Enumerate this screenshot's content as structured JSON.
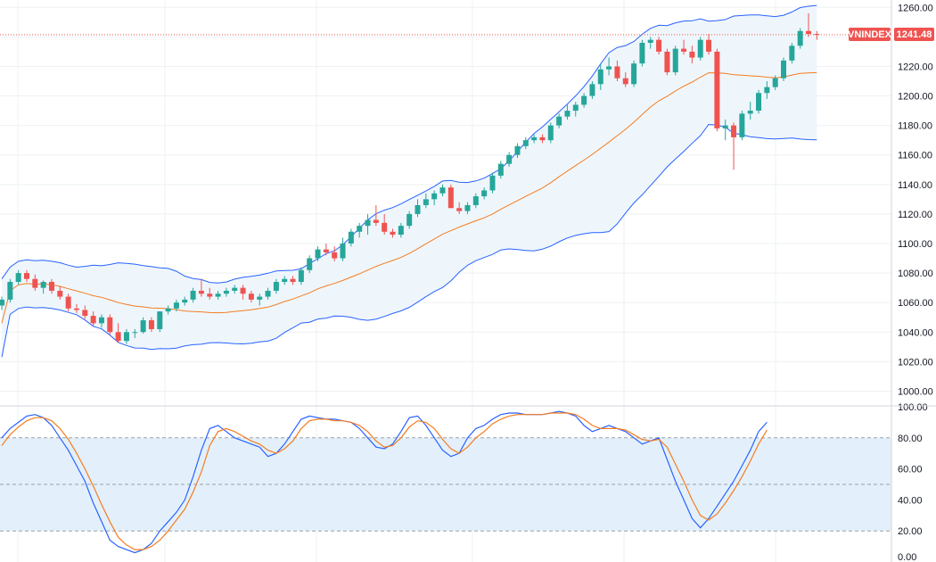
{
  "colors": {
    "up": "#26a69a",
    "down": "#ef5350",
    "band_line": "#2962ff",
    "band_fill": "#eef6fc",
    "basis_line": "#f57c1f",
    "stoch_k": "#2962ff",
    "stoch_d": "#f57c1f",
    "stoch_band_fill": "#e3f0fb",
    "grid": "#eef0f3",
    "axis_text": "#131722",
    "tag_bg": "#ef5350"
  },
  "price_tag": {
    "symbol": "VNINDEX",
    "value": "1241.48"
  },
  "chart_data": [
    {
      "type": "candlestick",
      "symbol": "VNINDEX",
      "ylim": [
        990,
        1265
      ],
      "y_ticks": [
        "1000.00",
        "1020.00",
        "1040.00",
        "1060.00",
        "1080.00",
        "1100.00",
        "1120.00",
        "1140.00",
        "1160.00",
        "1180.00",
        "1200.00",
        "1220.00",
        "1240.00",
        "1260.00"
      ],
      "last_price": 1241.48,
      "candles": [
        [
          1058,
          1064,
          1055,
          1062
        ],
        [
          1062,
          1076,
          1060,
          1074
        ],
        [
          1074,
          1082,
          1072,
          1080
        ],
        [
          1080,
          1082,
          1074,
          1076
        ],
        [
          1076,
          1079,
          1068,
          1070
        ],
        [
          1070,
          1075,
          1066,
          1074
        ],
        [
          1074,
          1076,
          1066,
          1068
        ],
        [
          1068,
          1071,
          1062,
          1064
        ],
        [
          1064,
          1066,
          1054,
          1056
        ],
        [
          1056,
          1059,
          1053,
          1055
        ],
        [
          1055,
          1058,
          1049,
          1051
        ],
        [
          1051,
          1054,
          1044,
          1046
        ],
        [
          1046,
          1052,
          1043,
          1050
        ],
        [
          1050,
          1052,
          1038,
          1040
        ],
        [
          1040,
          1046,
          1033,
          1034
        ],
        [
          1034,
          1042,
          1032,
          1040
        ],
        [
          1040,
          1042,
          1036,
          1040
        ],
        [
          1040,
          1050,
          1039,
          1048
        ],
        [
          1048,
          1050,
          1040,
          1042
        ],
        [
          1042,
          1054,
          1040,
          1054
        ],
        [
          1054,
          1058,
          1052,
          1056
        ],
        [
          1056,
          1062,
          1054,
          1060
        ],
        [
          1060,
          1064,
          1058,
          1062
        ],
        [
          1062,
          1070,
          1060,
          1068
        ],
        [
          1068,
          1076,
          1064,
          1066
        ],
        [
          1066,
          1070,
          1062,
          1064
        ],
        [
          1064,
          1068,
          1062,
          1066
        ],
        [
          1066,
          1070,
          1064,
          1068
        ],
        [
          1068,
          1072,
          1066,
          1070
        ],
        [
          1070,
          1072,
          1062,
          1066
        ],
        [
          1066,
          1068,
          1060,
          1062
        ],
        [
          1062,
          1066,
          1058,
          1064
        ],
        [
          1064,
          1070,
          1062,
          1068
        ],
        [
          1068,
          1076,
          1066,
          1074
        ],
        [
          1074,
          1078,
          1072,
          1076
        ],
        [
          1076,
          1078,
          1072,
          1074
        ],
        [
          1074,
          1084,
          1072,
          1082
        ],
        [
          1082,
          1092,
          1080,
          1090
        ],
        [
          1090,
          1098,
          1088,
          1096
        ],
        [
          1096,
          1100,
          1092,
          1094
        ],
        [
          1094,
          1098,
          1088,
          1090
        ],
        [
          1090,
          1104,
          1088,
          1100
        ],
        [
          1100,
          1110,
          1098,
          1108
        ],
        [
          1108,
          1114,
          1104,
          1112
        ],
        [
          1112,
          1120,
          1106,
          1116
        ],
        [
          1116,
          1126,
          1112,
          1114
        ],
        [
          1114,
          1120,
          1106,
          1108
        ],
        [
          1108,
          1110,
          1104,
          1106
        ],
        [
          1106,
          1114,
          1104,
          1112
        ],
        [
          1112,
          1122,
          1110,
          1120
        ],
        [
          1120,
          1130,
          1118,
          1126
        ],
        [
          1126,
          1134,
          1124,
          1130
        ],
        [
          1130,
          1136,
          1126,
          1134
        ],
        [
          1134,
          1140,
          1132,
          1138
        ],
        [
          1138,
          1140,
          1124,
          1124
        ],
        [
          1124,
          1128,
          1120,
          1122
        ],
        [
          1122,
          1128,
          1120,
          1126
        ],
        [
          1126,
          1134,
          1124,
          1132
        ],
        [
          1132,
          1138,
          1130,
          1136
        ],
        [
          1136,
          1148,
          1134,
          1146
        ],
        [
          1146,
          1156,
          1144,
          1154
        ],
        [
          1154,
          1162,
          1152,
          1160
        ],
        [
          1160,
          1168,
          1158,
          1166
        ],
        [
          1166,
          1172,
          1164,
          1170
        ],
        [
          1170,
          1174,
          1168,
          1172
        ],
        [
          1172,
          1174,
          1168,
          1170
        ],
        [
          1170,
          1182,
          1168,
          1180
        ],
        [
          1180,
          1188,
          1178,
          1186
        ],
        [
          1186,
          1194,
          1184,
          1190
        ],
        [
          1190,
          1196,
          1186,
          1194
        ],
        [
          1194,
          1202,
          1192,
          1200
        ],
        [
          1200,
          1210,
          1198,
          1208
        ],
        [
          1208,
          1222,
          1204,
          1218
        ],
        [
          1218,
          1226,
          1214,
          1220
        ],
        [
          1220,
          1224,
          1210,
          1212
        ],
        [
          1212,
          1216,
          1206,
          1208
        ],
        [
          1208,
          1224,
          1206,
          1222
        ],
        [
          1222,
          1238,
          1220,
          1236
        ],
        [
          1236,
          1240,
          1232,
          1238
        ],
        [
          1238,
          1240,
          1228,
          1230
        ],
        [
          1230,
          1232,
          1214,
          1216
        ],
        [
          1216,
          1234,
          1214,
          1232
        ],
        [
          1232,
          1238,
          1228,
          1230
        ],
        [
          1230,
          1234,
          1222,
          1226
        ],
        [
          1226,
          1240,
          1224,
          1238
        ],
        [
          1238,
          1242,
          1228,
          1230
        ],
        [
          1230,
          1232,
          1176,
          1178
        ],
        [
          1178,
          1184,
          1170,
          1180
        ],
        [
          1180,
          1182,
          1150,
          1172
        ],
        [
          1172,
          1190,
          1170,
          1188
        ],
        [
          1188,
          1196,
          1184,
          1190
        ],
        [
          1190,
          1204,
          1188,
          1202
        ],
        [
          1202,
          1210,
          1198,
          1206
        ],
        [
          1206,
          1214,
          1204,
          1212
        ],
        [
          1212,
          1226,
          1210,
          1224
        ],
        [
          1224,
          1236,
          1222,
          1234
        ],
        [
          1234,
          1246,
          1232,
          1244
        ],
        [
          1244,
          1256,
          1240,
          1242
        ],
        [
          1242,
          1244,
          1238,
          1241.48
        ]
      ],
      "bollinger": {
        "upper_start": 1076,
        "upper_end": 1264,
        "basis_start": 1046,
        "basis_end": 1215,
        "lower_start": 1023,
        "lower_end": 1165
      }
    },
    {
      "type": "line",
      "name": "Stochastic",
      "ylim": [
        0,
        100
      ],
      "y_ticks": [
        "0.00",
        "20.00",
        "40.00",
        "60.00",
        "80.00",
        "100.00"
      ],
      "bands": [
        20,
        50,
        80
      ],
      "series": [
        {
          "key": "k",
          "values": [
            80,
            86,
            90,
            94,
            95,
            93,
            88,
            80,
            72,
            62,
            52,
            38,
            26,
            14,
            10,
            8,
            6,
            8,
            12,
            20,
            26,
            32,
            40,
            55,
            72,
            86,
            88,
            84,
            80,
            78,
            76,
            74,
            68,
            70,
            76,
            84,
            92,
            94,
            93,
            92,
            92,
            91,
            90,
            86,
            80,
            74,
            73,
            76,
            84,
            93,
            94,
            88,
            80,
            72,
            68,
            70,
            80,
            86,
            88,
            92,
            95,
            96,
            96,
            95,
            95,
            95,
            96,
            97,
            96,
            94,
            88,
            84,
            86,
            88,
            86,
            84,
            80,
            76,
            78,
            80,
            66,
            52,
            40,
            28,
            22,
            28,
            36,
            44,
            52,
            62,
            72,
            84,
            90
          ]
        },
        {
          "key": "d",
          "values": [
            75,
            82,
            87,
            91,
            93,
            93,
            91,
            86,
            79,
            70,
            60,
            49,
            37,
            26,
            16,
            11,
            8,
            8,
            10,
            14,
            20,
            27,
            34,
            45,
            58,
            75,
            84,
            86,
            84,
            81,
            78,
            76,
            72,
            70,
            73,
            78,
            86,
            91,
            92,
            92,
            91,
            91,
            90,
            88,
            84,
            78,
            74,
            75,
            80,
            87,
            91,
            90,
            86,
            79,
            73,
            70,
            74,
            80,
            84,
            89,
            92,
            94,
            95,
            95,
            95,
            95,
            96,
            96,
            96,
            95,
            92,
            88,
            86,
            86,
            86,
            85,
            82,
            79,
            78,
            79,
            74,
            63,
            52,
            40,
            30,
            27,
            31,
            38,
            46,
            55,
            65,
            76,
            85
          ]
        }
      ]
    }
  ]
}
